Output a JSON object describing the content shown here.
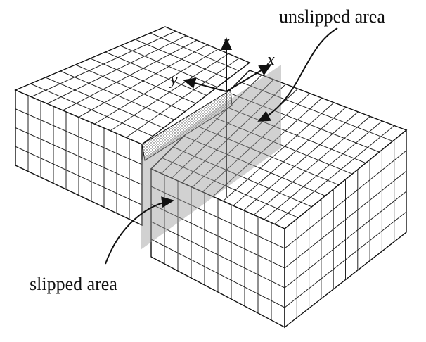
{
  "labels": {
    "unslipped": "unslipped area",
    "slipped": "slipped area",
    "z": "z",
    "x": "x",
    "y": "y"
  }
}
